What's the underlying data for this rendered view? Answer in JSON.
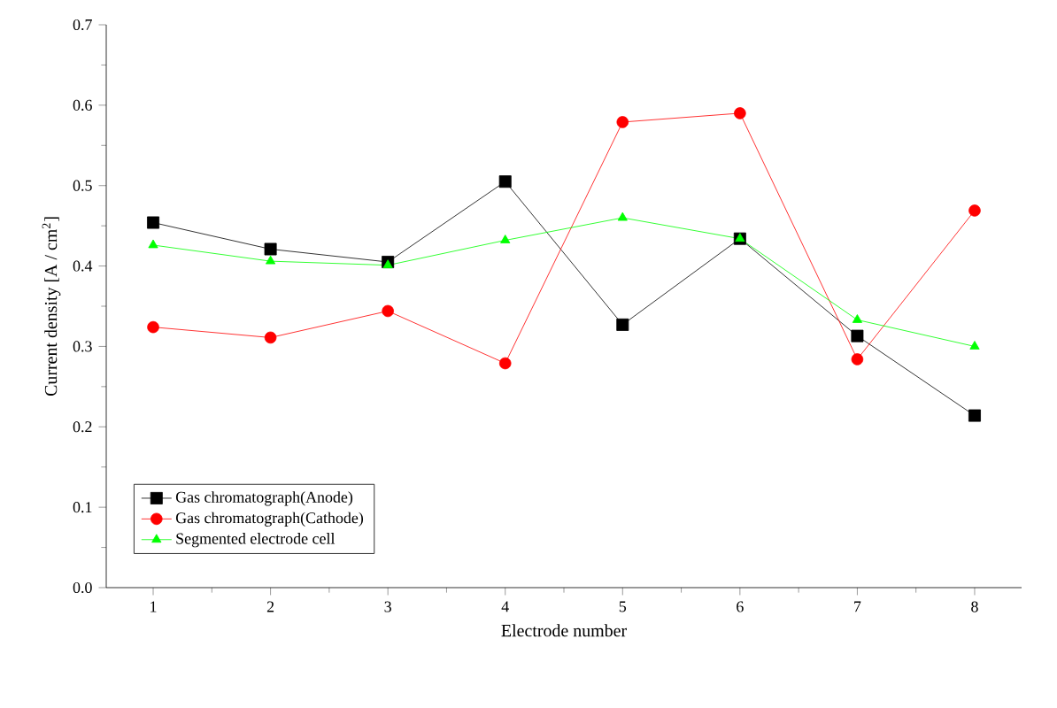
{
  "chart_data": {
    "type": "line",
    "xlabel": "Electrode number",
    "ylabel": "Current density [A / cm$^{2}$]",
    "x": [
      1,
      2,
      3,
      4,
      5,
      6,
      7,
      8
    ],
    "series": [
      {
        "name": "Gas chromatograph(Anode)",
        "color": "#000000",
        "marker": "square",
        "values": [
          0.454,
          0.421,
          0.405,
          0.505,
          0.327,
          0.434,
          0.313,
          0.214
        ]
      },
      {
        "name": "Gas chromatograph(Cathode)",
        "color": "#ff0000",
        "marker": "circle",
        "values": [
          0.324,
          0.311,
          0.344,
          0.279,
          0.579,
          0.59,
          0.284,
          0.469
        ]
      },
      {
        "name": "Segmented electrode cell",
        "color": "#00ff00",
        "marker": "triangle",
        "values": [
          0.426,
          0.406,
          0.401,
          0.432,
          0.46,
          0.434,
          0.333,
          0.3
        ]
      }
    ],
    "xlim": [
      0.6,
      8.4
    ],
    "xticks": [
      1,
      2,
      3,
      4,
      5,
      6,
      7,
      8
    ],
    "ylim": [
      0,
      0.7
    ],
    "yticks": [
      {
        "value": 0,
        "label": "0.0"
      },
      0.1,
      0.2,
      0.3,
      0.4,
      0.5,
      0.6,
      0.7
    ],
    "grid": false,
    "legend": "bottom left",
    "line_style": "solid"
  }
}
